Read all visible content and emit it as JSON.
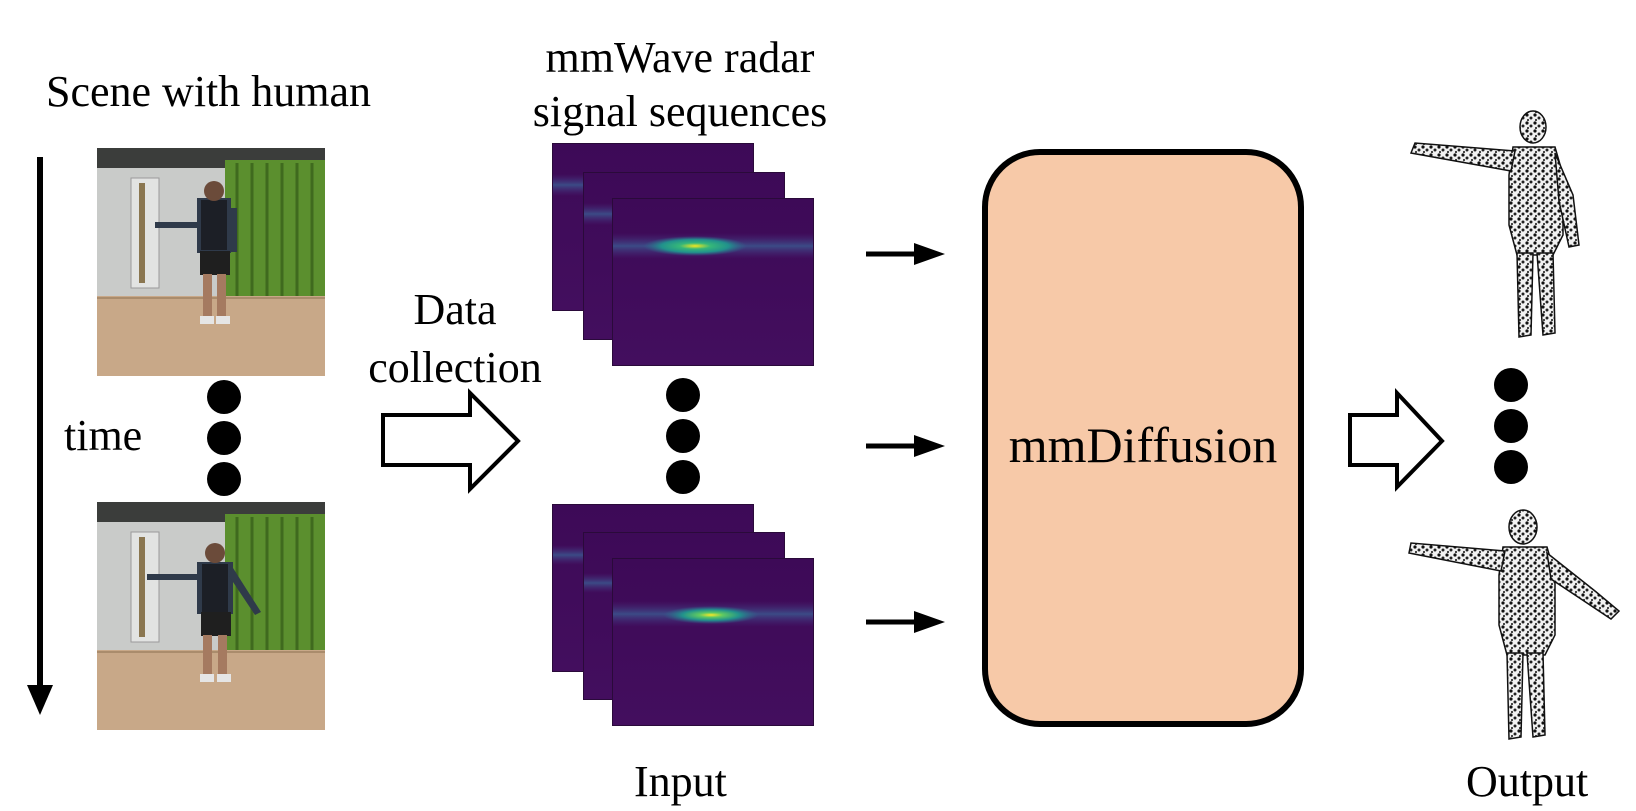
{
  "labels": {
    "scene": "Scene with human",
    "time": "time",
    "radar_title_1": "mmWave radar",
    "radar_title_2": "signal sequences",
    "data_collection_1": "Data",
    "data_collection_2": "collection",
    "input": "Input",
    "output": "Output",
    "model": "mmDiffusion"
  },
  "colors": {
    "model_fill": "#f7c9a8",
    "radar_background": "#3d0a57",
    "radar_peak": "#f4e61e"
  }
}
